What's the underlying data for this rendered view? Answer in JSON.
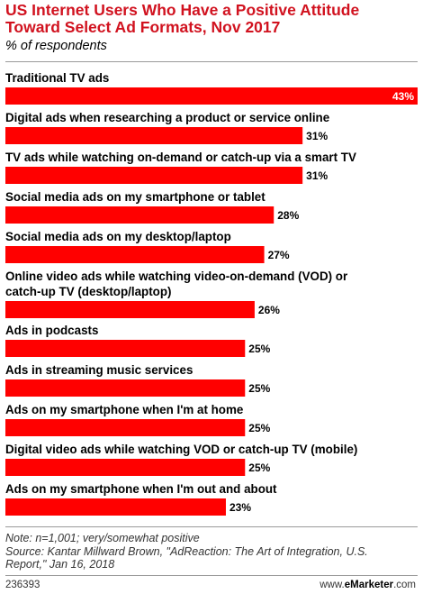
{
  "chart_data": {
    "type": "bar",
    "orientation": "horizontal",
    "title": "US Internet Users Who Have a Positive Attitude Toward Select Ad Formats, Nov 2017",
    "subtitle": "% of respondents",
    "categories": [
      "Traditional TV ads",
      "Digital ads when researching a product or service online",
      "TV ads while watching on-demand or catch-up via a smart TV",
      "Social media ads on my smartphone or tablet",
      "Social media ads on my desktop/laptop",
      "Online video ads while watching video-on-demand (VOD) or catch-up TV (desktop/laptop)",
      "Ads in podcasts",
      "Ads in streaming music services",
      "Ads on my smartphone when I'm at home",
      "Digital video ads while watching VOD or catch-up TV (mobile)",
      "Ads on my smartphone when I'm out and about"
    ],
    "category_lines": [
      [
        "Traditional TV ads"
      ],
      [
        "Digital ads when researching a product or service online"
      ],
      [
        "TV ads while watching on-demand or catch-up via a smart TV"
      ],
      [
        "Social media ads on my smartphone or tablet"
      ],
      [
        "Social media ads on my desktop/laptop"
      ],
      [
        "Online video ads while watching video-on-demand (VOD) or",
        "catch-up TV (desktop/laptop)"
      ],
      [
        "Ads in podcasts"
      ],
      [
        "Ads in streaming music services"
      ],
      [
        "Ads on my smartphone when I'm at home"
      ],
      [
        "Digital video ads while watching VOD or catch-up TV (mobile)"
      ],
      [
        "Ads on my smartphone when I'm out and about"
      ]
    ],
    "values": [
      43,
      31,
      31,
      28,
      27,
      26,
      25,
      25,
      25,
      25,
      23
    ],
    "value_labels": [
      "43%",
      "31%",
      "31%",
      "28%",
      "27%",
      "26%",
      "25%",
      "25%",
      "25%",
      "25%",
      "23%"
    ],
    "xlim": [
      0,
      43
    ],
    "grid": false,
    "legend": "none",
    "bar_color": "#ff0000"
  },
  "footer": {
    "note": "Note: n=1,001; very/somewhat positive",
    "source": "Source: Kantar Millward Brown, \"AdReaction: The Art of Integration, U.S. Report,\" Jan 16, 2018",
    "chart_id": "236393",
    "brand_prefix": "www.",
    "brand_name": "eMarketer",
    "brand_suffix": ".com"
  },
  "colors": {
    "title": "#d1121f",
    "bar": "#ff0000",
    "inside_label": "#ffffff",
    "outside_label": "#000000"
  }
}
